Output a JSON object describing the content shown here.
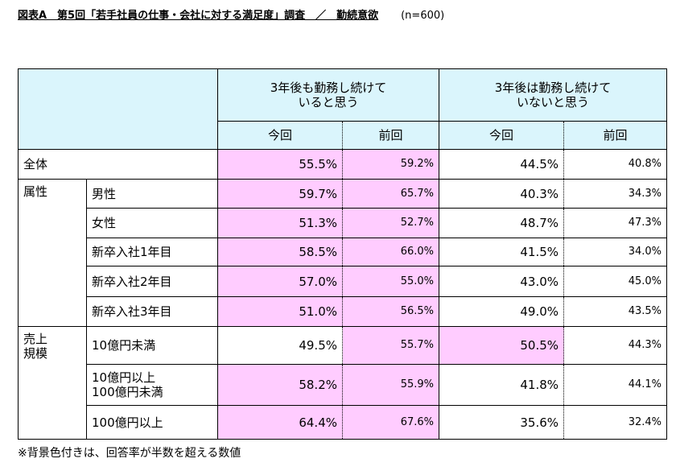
{
  "header": {
    "title": "図表A　第5回「若手社員の仕事・会社に対する満足度」調査　／　勤続意欲",
    "sample": "(n=600)"
  },
  "table": {
    "shade_color": "#ffccff",
    "header_color": "#daf5fc",
    "column_groups": [
      {
        "label": "3年後も勤務し続けて\nいると思う",
        "sub": [
          "今回",
          "前回"
        ]
      },
      {
        "label": "3年後は勤務し続けて\nいないと思う",
        "sub": [
          "今回",
          "前回"
        ]
      }
    ],
    "groups": [
      {
        "rows": [
          {
            "label": "全体",
            "cells": [
              {
                "text": "55.5%",
                "shaded": true
              },
              {
                "text": "59.2%",
                "shaded": true
              },
              {
                "text": "44.5%",
                "shaded": false
              },
              {
                "text": "40.8%",
                "shaded": false
              }
            ]
          }
        ]
      },
      {
        "label": "属性",
        "rows": [
          {
            "label": "男性",
            "cells": [
              {
                "text": "59.7%",
                "shaded": true
              },
              {
                "text": "65.7%",
                "shaded": true
              },
              {
                "text": "40.3%",
                "shaded": false
              },
              {
                "text": "34.3%",
                "shaded": false
              }
            ]
          },
          {
            "label": "女性",
            "cells": [
              {
                "text": "51.3%",
                "shaded": true
              },
              {
                "text": "52.7%",
                "shaded": true
              },
              {
                "text": "48.7%",
                "shaded": false
              },
              {
                "text": "47.3%",
                "shaded": false
              }
            ]
          },
          {
            "label": "新卒入社1年目",
            "cells": [
              {
                "text": "58.5%",
                "shaded": true
              },
              {
                "text": "66.0%",
                "shaded": true
              },
              {
                "text": "41.5%",
                "shaded": false
              },
              {
                "text": "34.0%",
                "shaded": false
              }
            ]
          },
          {
            "label": "新卒入社2年目",
            "cells": [
              {
                "text": "57.0%",
                "shaded": true
              },
              {
                "text": "55.0%",
                "shaded": true
              },
              {
                "text": "43.0%",
                "shaded": false
              },
              {
                "text": "45.0%",
                "shaded": false
              }
            ]
          },
          {
            "label": "新卒入社3年目",
            "cells": [
              {
                "text": "51.0%",
                "shaded": true
              },
              {
                "text": "56.5%",
                "shaded": true
              },
              {
                "text": "49.0%",
                "shaded": false
              },
              {
                "text": "43.5%",
                "shaded": false
              }
            ]
          }
        ]
      },
      {
        "label": "売上\n規模",
        "rows": [
          {
            "label": "10億円未満",
            "cells": [
              {
                "text": "49.5%",
                "shaded": false
              },
              {
                "text": "55.7%",
                "shaded": true
              },
              {
                "text": "50.5%",
                "shaded": true
              },
              {
                "text": "44.3%",
                "shaded": false
              }
            ]
          },
          {
            "label": "10億円以上\n100億円未満",
            "cells": [
              {
                "text": "58.2%",
                "shaded": true
              },
              {
                "text": "55.9%",
                "shaded": true
              },
              {
                "text": "41.8%",
                "shaded": false
              },
              {
                "text": "44.1%",
                "shaded": false
              }
            ]
          },
          {
            "label": "100億円以上",
            "cells": [
              {
                "text": "64.4%",
                "shaded": true
              },
              {
                "text": "67.6%",
                "shaded": true
              },
              {
                "text": "35.6%",
                "shaded": false
              },
              {
                "text": "32.4%",
                "shaded": false
              }
            ]
          }
        ]
      }
    ]
  },
  "note": "※背景色付きは、回答率が半数を超える数値"
}
